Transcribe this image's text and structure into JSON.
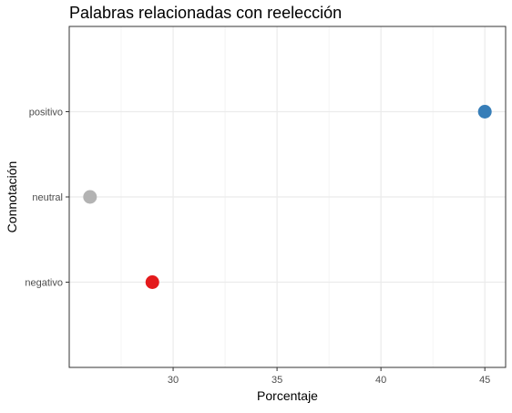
{
  "chart_data": {
    "type": "scatter",
    "title": "Palabras relacionadas con reelección",
    "xlabel": "Porcentaje",
    "ylabel": "Connotación",
    "xlim": [
      25.0,
      46.0
    ],
    "x_ticks": [
      30,
      35,
      40,
      45
    ],
    "x_minor_ticks": [
      27.5,
      32.5,
      37.5,
      42.5
    ],
    "categories": [
      "negativo",
      "neutral",
      "positivo"
    ],
    "points": [
      {
        "category": "negativo",
        "x": 29,
        "color": "#e41a1c"
      },
      {
        "category": "neutral",
        "x": 26,
        "color": "#b3b3b3"
      },
      {
        "category": "positivo",
        "x": 45,
        "color": "#377eb8"
      }
    ],
    "grid": true,
    "legend": "none"
  }
}
